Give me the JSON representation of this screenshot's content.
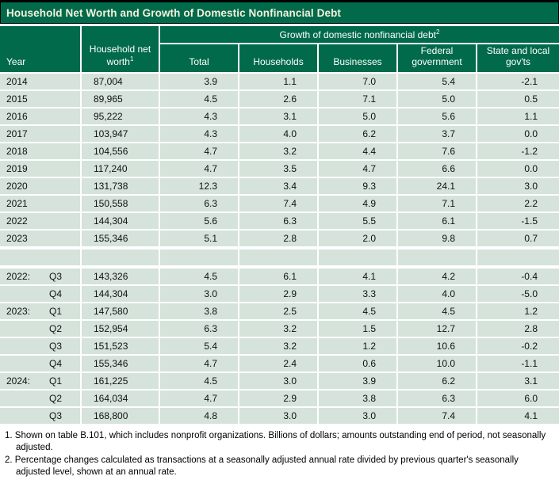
{
  "title": "Household Net Worth and Growth of Domestic Nonfinancial Debt",
  "colors": {
    "header_green": "#006A4A",
    "row_green": "#D5E3DA",
    "title_text": "#F6F1DC"
  },
  "header": {
    "year": "Year",
    "net_worth": "Household net worth",
    "net_worth_sup": "1",
    "group": "Growth of domestic nonfinancial debt",
    "group_sup": "2",
    "columns": [
      "Total",
      "Households",
      "Businesses",
      "Federal government",
      "State and local gov'ts"
    ]
  },
  "table": {
    "annual_rows": [
      {
        "year": "2014",
        "quarter": "",
        "net_worth": "87,004",
        "total": "3.9",
        "households": "1.1",
        "businesses": "7.0",
        "federal": "5.4",
        "state": "-2.1"
      },
      {
        "year": "2015",
        "quarter": "",
        "net_worth": "89,965",
        "total": "4.5",
        "households": "2.6",
        "businesses": "7.1",
        "federal": "5.0",
        "state": "0.5"
      },
      {
        "year": "2016",
        "quarter": "",
        "net_worth": "95,222",
        "total": "4.3",
        "households": "3.1",
        "businesses": "5.0",
        "federal": "5.6",
        "state": "1.1"
      },
      {
        "year": "2017",
        "quarter": "",
        "net_worth": "103,947",
        "total": "4.3",
        "households": "4.0",
        "businesses": "6.2",
        "federal": "3.7",
        "state": "0.0"
      },
      {
        "year": "2018",
        "quarter": "",
        "net_worth": "104,556",
        "total": "4.7",
        "households": "3.2",
        "businesses": "4.4",
        "federal": "7.6",
        "state": "-1.2"
      },
      {
        "year": "2019",
        "quarter": "",
        "net_worth": "117,240",
        "total": "4.7",
        "households": "3.5",
        "businesses": "4.7",
        "federal": "6.6",
        "state": "0.0"
      },
      {
        "year": "2020",
        "quarter": "",
        "net_worth": "131,738",
        "total": "12.3",
        "households": "3.4",
        "businesses": "9.3",
        "federal": "24.1",
        "state": "3.0"
      },
      {
        "year": "2021",
        "quarter": "",
        "net_worth": "150,558",
        "total": "6.3",
        "households": "7.4",
        "businesses": "4.9",
        "federal": "7.1",
        "state": "2.2"
      },
      {
        "year": "2022",
        "quarter": "",
        "net_worth": "144,304",
        "total": "5.6",
        "households": "6.3",
        "businesses": "5.5",
        "federal": "6.1",
        "state": "-1.5"
      },
      {
        "year": "2023",
        "quarter": "",
        "net_worth": "155,346",
        "total": "5.1",
        "households": "2.8",
        "businesses": "2.0",
        "federal": "9.8",
        "state": "0.7"
      }
    ],
    "quarterly_rows": [
      {
        "year": "2022:",
        "quarter": "Q3",
        "net_worth": "143,326",
        "total": "4.5",
        "households": "6.1",
        "businesses": "4.1",
        "federal": "4.2",
        "state": "-0.4"
      },
      {
        "year": "",
        "quarter": "Q4",
        "net_worth": "144,304",
        "total": "3.0",
        "households": "2.9",
        "businesses": "3.3",
        "federal": "4.0",
        "state": "-5.0"
      },
      {
        "year": "2023:",
        "quarter": "Q1",
        "net_worth": "147,580",
        "total": "3.8",
        "households": "2.5",
        "businesses": "4.5",
        "federal": "4.5",
        "state": "1.2"
      },
      {
        "year": "",
        "quarter": "Q2",
        "net_worth": "152,954",
        "total": "6.3",
        "households": "3.2",
        "businesses": "1.5",
        "federal": "12.7",
        "state": "2.8"
      },
      {
        "year": "",
        "quarter": "Q3",
        "net_worth": "151,523",
        "total": "5.4",
        "households": "3.2",
        "businesses": "1.2",
        "federal": "10.6",
        "state": "-0.2"
      },
      {
        "year": "",
        "quarter": "Q4",
        "net_worth": "155,346",
        "total": "4.7",
        "households": "2.4",
        "businesses": "0.6",
        "federal": "10.0",
        "state": "-1.1"
      },
      {
        "year": "2024:",
        "quarter": "Q1",
        "net_worth": "161,225",
        "total": "4.5",
        "households": "3.0",
        "businesses": "3.9",
        "federal": "6.2",
        "state": "3.1"
      },
      {
        "year": "",
        "quarter": "Q2",
        "net_worth": "164,034",
        "total": "4.7",
        "households": "2.9",
        "businesses": "3.8",
        "federal": "6.3",
        "state": "6.0"
      },
      {
        "year": "",
        "quarter": "Q3",
        "net_worth": "168,800",
        "total": "4.8",
        "households": "3.0",
        "businesses": "3.0",
        "federal": "7.4",
        "state": "4.1"
      }
    ]
  },
  "footnotes": [
    "1. Shown on table B.101, which includes nonprofit organizations. Billions of dollars; amounts outstanding end of period, not seasonally adjusted.",
    "2. Percentage changes calculated as transactions at a seasonally adjusted annual rate divided by previous quarter's seasonally adjusted level, shown at an annual rate."
  ]
}
